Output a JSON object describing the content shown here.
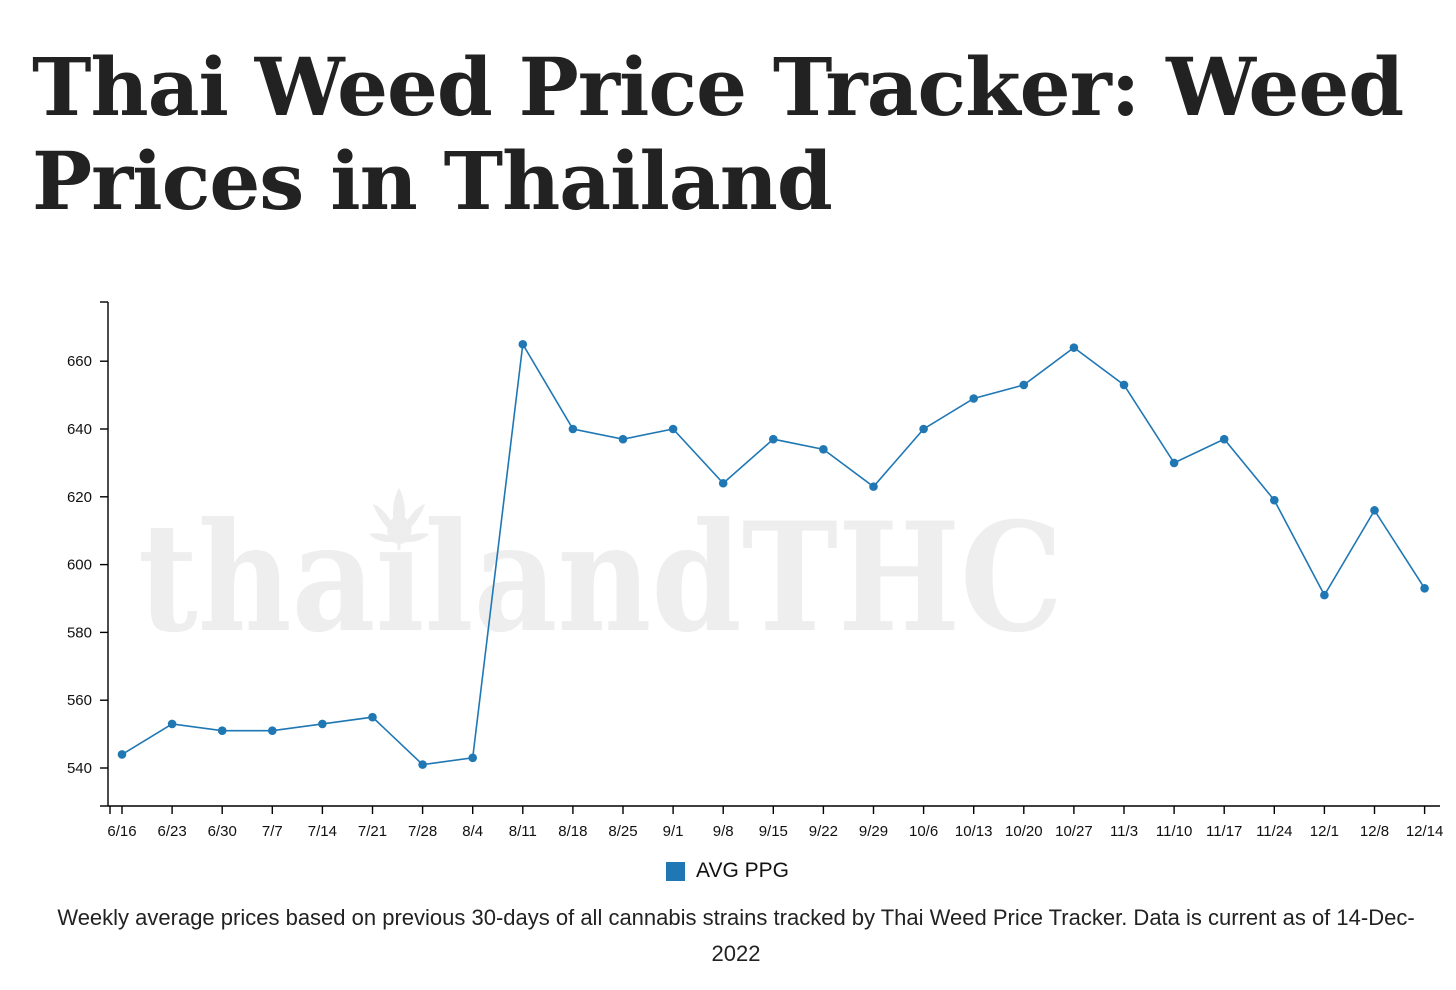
{
  "page": {
    "title": "Thai Weed Price Tracker: Weed Prices in Thailand",
    "caption": "Weekly average prices based on previous 30-days of all cannabis strains tracked by Thai Weed Price Tracker. Data is current as of 14-Dec-2022",
    "watermark": "thailandTHC",
    "watermark_icon": "cannabis-leaf-icon"
  },
  "colors": {
    "series": "#1f77b4",
    "title": "#222222",
    "watermark": "#efeeee"
  },
  "chart_data": {
    "type": "line",
    "title": "",
    "xlabel": "",
    "ylabel": "",
    "x": [
      "6/16",
      "6/23",
      "6/30",
      "7/7",
      "7/14",
      "7/21",
      "7/28",
      "8/4",
      "8/11",
      "8/18",
      "8/25",
      "9/1",
      "9/8",
      "9/15",
      "9/22",
      "9/29",
      "10/6",
      "10/13",
      "10/20",
      "10/27",
      "11/3",
      "11/10",
      "11/17",
      "11/24",
      "12/1",
      "12/8",
      "12/14"
    ],
    "series": [
      {
        "name": "AVG PPG",
        "values": [
          544,
          553,
          551,
          551,
          553,
          555,
          541,
          543,
          665,
          640,
          637,
          640,
          624,
          637,
          634,
          623,
          640,
          649,
          653,
          664,
          653,
          630,
          637,
          619,
          591,
          616,
          593
        ]
      }
    ],
    "yticks": [
      540,
      560,
      580,
      600,
      620,
      640,
      660
    ],
    "ylim": [
      528,
      678
    ],
    "grid": false,
    "legend": "bottom-center",
    "markers": true
  }
}
